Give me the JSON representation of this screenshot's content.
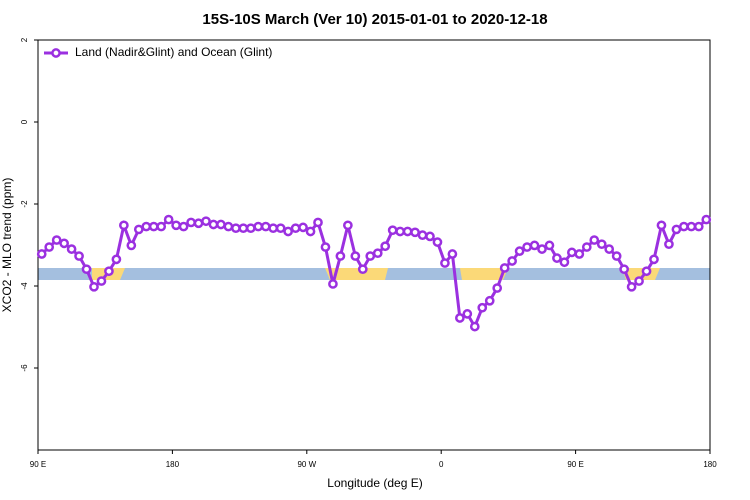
{
  "chart_data": {
    "type": "line",
    "title": "15S-10S March (Ver 10)   2015-01-01 to 2020-12-18",
    "x_label": "Longitude (deg E)",
    "y_label": "XCO2 - MLO trend (ppm)",
    "legend": "topleft",
    "xlim": [
      90,
      540
    ],
    "xticks": [
      {
        "value": 90,
        "label": "90 E"
      },
      {
        "value": 180,
        "label": "180"
      },
      {
        "value": 270,
        "label": "90 W"
      },
      {
        "value": 360,
        "label": "0"
      },
      {
        "value": 450,
        "label": "90 E"
      },
      {
        "value": 540,
        "label": "180"
      }
    ],
    "ylim": [
      -8,
      2
    ],
    "yticks": [
      -6,
      -4,
      -2,
      0,
      2
    ],
    "x": [
      92.5,
      97.5,
      102.5,
      107.5,
      112.5,
      117.5,
      122.5,
      127.5,
      132.5,
      137.5,
      142.5,
      147.5,
      152.5,
      157.5,
      162.5,
      167.5,
      172.5,
      177.5,
      182.5,
      187.5,
      192.5,
      197.5,
      202.5,
      207.5,
      212.5,
      217.5,
      222.5,
      227.5,
      232.5,
      237.5,
      242.5,
      247.5,
      252.5,
      257.5,
      262.5,
      267.5,
      272.5,
      277.5,
      282.5,
      287.5,
      292.5,
      297.5,
      302.5,
      307.5,
      312.5,
      317.5,
      322.5,
      327.5,
      332.5,
      337.5,
      342.5,
      347.5,
      352.5,
      357.5,
      362.5,
      367.5,
      372.5,
      377.5,
      382.5,
      387.5,
      392.5,
      397.5,
      402.5,
      407.5,
      412.5,
      417.5,
      422.5,
      427.5,
      432.5,
      437.5,
      442.5,
      447.5,
      452.5,
      457.5,
      462.5,
      467.5,
      472.5,
      477.5,
      482.5,
      487.5,
      492.5,
      497.5,
      502.5,
      507.5,
      512.5,
      517.5,
      522.5,
      527.5,
      532.5,
      537.5
    ],
    "series": [
      {
        "name": "Land (Nadir&Glint) and Ocean (Glint)",
        "color": "#9b30e0",
        "values": [
          -3.22,
          -3.05,
          -2.88,
          -2.96,
          -3.1,
          -3.27,
          -3.59,
          -4.02,
          -3.88,
          -3.64,
          -3.35,
          -2.52,
          -3.01,
          -2.62,
          -2.55,
          -2.55,
          -2.55,
          -2.38,
          -2.52,
          -2.55,
          -2.45,
          -2.47,
          -2.42,
          -2.5,
          -2.5,
          -2.55,
          -2.59,
          -2.59,
          -2.59,
          -2.55,
          -2.55,
          -2.59,
          -2.59,
          -2.67,
          -2.59,
          -2.57,
          -2.67,
          -2.45,
          -3.05,
          -3.95,
          -3.27,
          -2.52,
          -3.27,
          -3.59,
          -3.27,
          -3.2,
          -3.03,
          -2.64,
          -2.67,
          -2.67,
          -2.69,
          -2.76,
          -2.79,
          -2.93,
          -3.44,
          -3.22,
          -4.78,
          -4.68,
          -4.99,
          -4.53,
          -4.36,
          -4.05,
          -3.56,
          -3.39,
          -3.15,
          -3.05,
          -3.01,
          -3.1,
          -3.01,
          -3.32,
          -3.42,
          -3.18,
          -3.22,
          -3.05,
          -2.88,
          -2.98,
          -3.1,
          -3.27,
          -3.59,
          -4.02,
          -3.88,
          -3.64,
          -3.35,
          -2.52,
          -2.98,
          -2.62,
          -2.55,
          -2.55,
          -2.55,
          -2.38
        ]
      }
    ]
  }
}
